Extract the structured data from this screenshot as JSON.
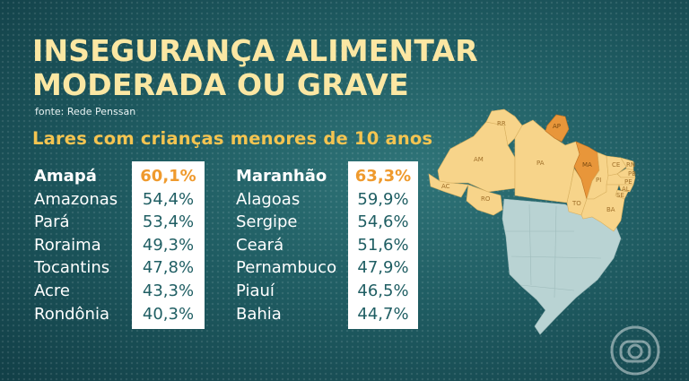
{
  "title_lines": [
    "INSEGURANÇA ALIMENTAR",
    "MODERADA OU GRAVE"
  ],
  "source": "fonte: Rede Penssan",
  "subtitle": "Lares com crianças menores de 10 anos",
  "left_table": [
    {
      "state": "Amapá",
      "value": "60,1%"
    },
    {
      "state": "Amazonas",
      "value": "54,4%"
    },
    {
      "state": "Pará",
      "value": "53,4%"
    },
    {
      "state": "Roraima",
      "value": "49,3%"
    },
    {
      "state": "Tocantins",
      "value": "47,8%"
    },
    {
      "state": "Acre",
      "value": "43,3%"
    },
    {
      "state": "Rondônia",
      "value": "40,3%"
    }
  ],
  "right_table": [
    {
      "state": "Maranhão",
      "value": "63,3%"
    },
    {
      "state": "Alagoas",
      "value": "59,9%"
    },
    {
      "state": "Sergipe",
      "value": "54,6%"
    },
    {
      "state": "Ceará",
      "value": "51,6%"
    },
    {
      "state": "Pernambuco",
      "value": "47,9%"
    },
    {
      "state": "Piauí",
      "value": "46,5%"
    },
    {
      "state": "Bahia",
      "value": "44,7%"
    }
  ],
  "map_labels": {
    "rr": "RR",
    "ap": "AP",
    "am": "AM",
    "pa": "PA",
    "ma": "MA",
    "ce": "CE",
    "rn": "RN",
    "pb": "PB",
    "pe": "PE",
    "al": "AL",
    "se": "SE",
    "pi": "PI",
    "ac": "AC",
    "ro": "RO",
    "to": "TO",
    "ba": "BA"
  },
  "colors": {
    "title": "#fbe7a3",
    "subtitle": "#f4c451",
    "highlight": "#ef9a2d",
    "value_text": "#1f5e63",
    "region_light": "#f7d48a",
    "region_dark": "#e8963a",
    "rest_of_country": "#b9d3d3"
  },
  "logo_icon": "globo-logo-icon"
}
